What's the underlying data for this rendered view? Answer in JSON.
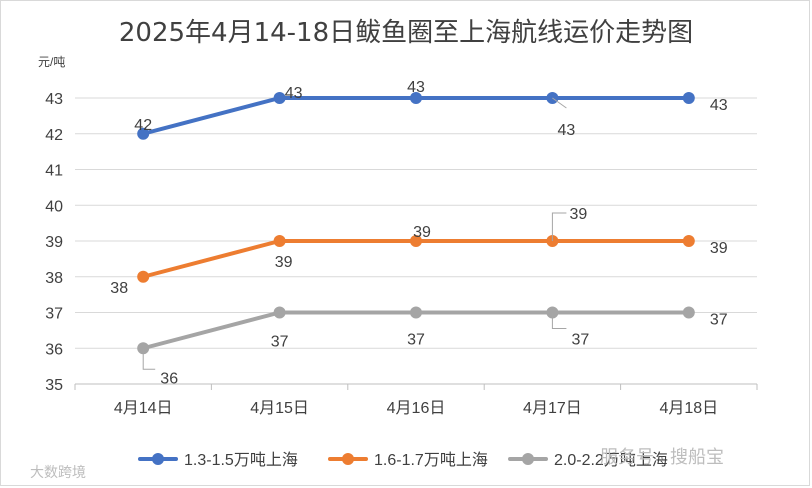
{
  "chart_data": {
    "type": "line",
    "title": "2025年4月14-18日鲅鱼圈至上海航线运价走势图",
    "ylabel": "元/吨",
    "xlabel": "",
    "ylim": [
      35,
      43
    ],
    "yticks": [
      "35",
      "36",
      "37",
      "38",
      "39",
      "40",
      "41",
      "42",
      "43"
    ],
    "categories": [
      "4月14日",
      "4月15日",
      "4月16日",
      "4月17日",
      "4月18日"
    ],
    "grid": true,
    "legend": "bottom",
    "series": [
      {
        "name": "1.3-1.5万吨上海",
        "color": "#4472c4",
        "values": [
          42,
          43,
          43,
          43,
          43
        ]
      },
      {
        "name": "1.6-1.7万吨上海",
        "color": "#ed7d31",
        "values": [
          38,
          39,
          39,
          39,
          39
        ]
      },
      {
        "name": "2.0-2.2万吨上海",
        "color": "#a5a5a5",
        "values": [
          36,
          37,
          37,
          37,
          37
        ]
      }
    ]
  },
  "watermarks": {
    "left": "大数跨境",
    "right": "服务号 · 搜船宝"
  }
}
